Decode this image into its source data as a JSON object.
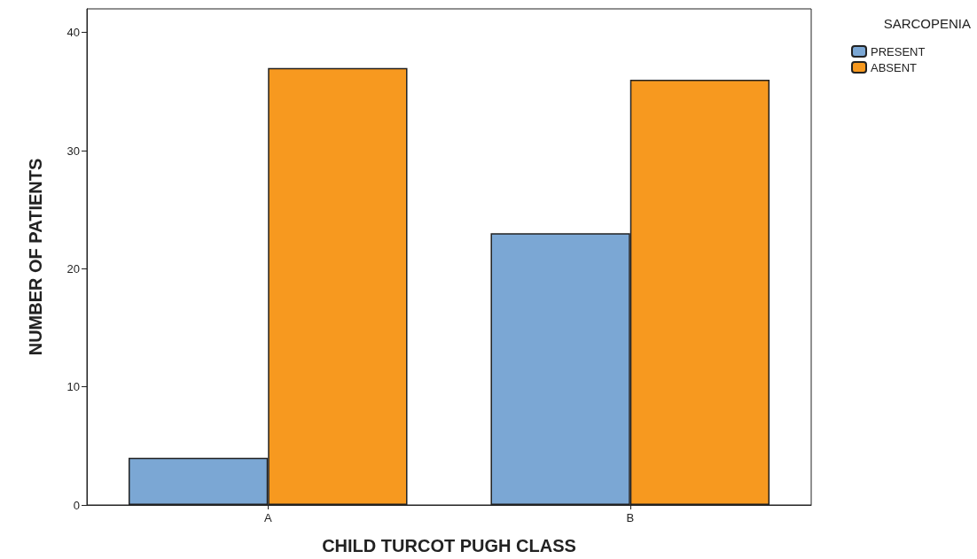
{
  "chart_data": {
    "type": "bar",
    "xlabel": "CHILD TURCOT PUGH CLASS",
    "ylabel": "NUMBER OF PATIENTS",
    "legend_title": "SARCOPENIA",
    "categories": [
      "A",
      "B"
    ],
    "series": [
      {
        "name": "PRESENT",
        "color": "#7ba7d4",
        "values": [
          4,
          23
        ]
      },
      {
        "name": "ABSENT",
        "color": "#f7991f",
        "values": [
          37,
          36
        ]
      }
    ],
    "ylim": [
      0,
      42
    ],
    "yticks": [
      0,
      10,
      20,
      30,
      40
    ],
    "grid": false,
    "legend": "top right"
  }
}
